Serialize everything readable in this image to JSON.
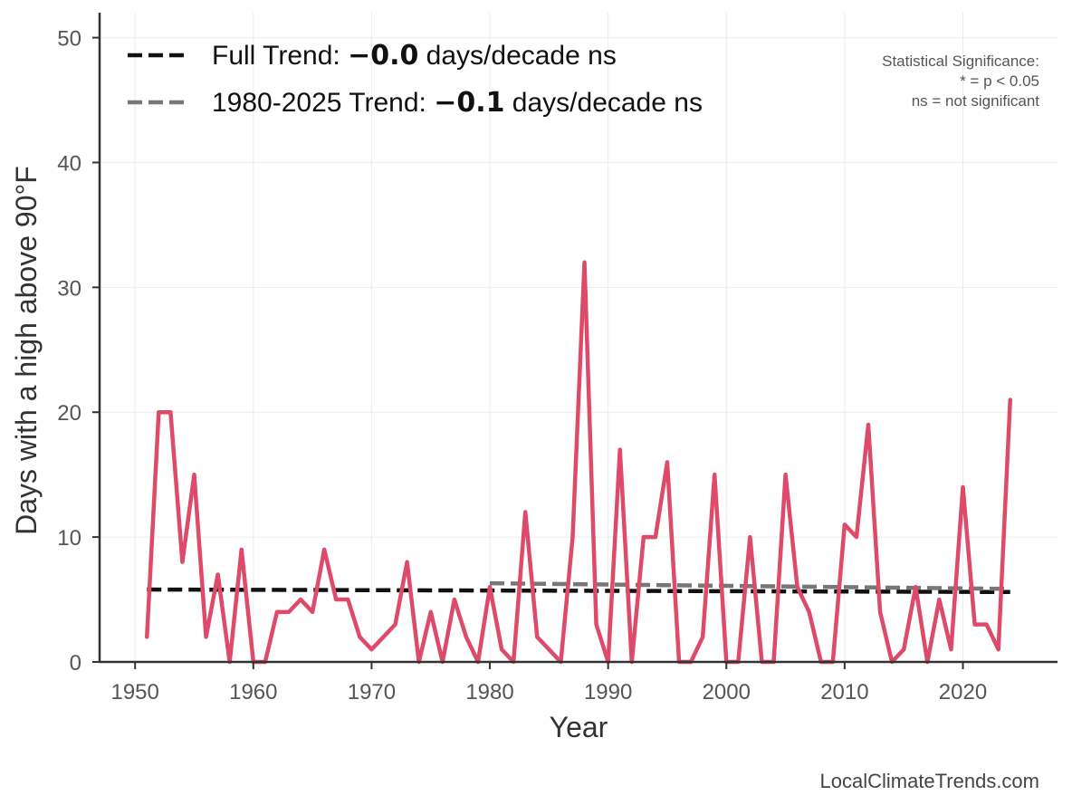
{
  "chart_data": {
    "type": "line",
    "title": "",
    "xlabel": "Year",
    "ylabel": "Days with a high above 90°F",
    "xlim": [
      1947,
      2028
    ],
    "ylim": [
      0,
      52
    ],
    "x_ticks": [
      1950,
      1960,
      1970,
      1980,
      1990,
      2000,
      2010,
      2020
    ],
    "y_ticks": [
      0,
      10,
      20,
      30,
      40,
      50
    ],
    "grid": true,
    "series": [
      {
        "color": "#dd4a6a",
        "x": [
          1951,
          1952,
          1953,
          1954,
          1955,
          1956,
          1957,
          1958,
          1959,
          1960,
          1961,
          1962,
          1963,
          1964,
          1965,
          1966,
          1967,
          1968,
          1969,
          1970,
          1971,
          1972,
          1973,
          1974,
          1975,
          1976,
          1977,
          1978,
          1979,
          1980,
          1981,
          1982,
          1983,
          1984,
          1985,
          1986,
          1987,
          1988,
          1989,
          1990,
          1991,
          1992,
          1993,
          1994,
          1995,
          1996,
          1997,
          1998,
          1999,
          2000,
          2001,
          2002,
          2003,
          2004,
          2005,
          2006,
          2007,
          2008,
          2009,
          2010,
          2011,
          2012,
          2013,
          2014,
          2015,
          2016,
          2017,
          2018,
          2019,
          2020,
          2021,
          2022,
          2023,
          2024
        ],
        "values": [
          2,
          20,
          20,
          8,
          15,
          2,
          7,
          0,
          9,
          0,
          0,
          4,
          4,
          5,
          4,
          9,
          5,
          5,
          2,
          1,
          2,
          3,
          8,
          0,
          4,
          0,
          5,
          2,
          0,
          6,
          1,
          0,
          12,
          2,
          1,
          0,
          10,
          32,
          3,
          0,
          17,
          0,
          10,
          10,
          16,
          0,
          0,
          2,
          15,
          0,
          0,
          10,
          0,
          0,
          15,
          6,
          4,
          0,
          0,
          11,
          10,
          19,
          4,
          0,
          1,
          6,
          0,
          5,
          1,
          14,
          3,
          3,
          1,
          21
        ]
      }
    ],
    "trend_lines": [
      {
        "name": "Full Trend",
        "color": "#111111",
        "style": "dashed",
        "x": [
          1951,
          2024
        ],
        "y": [
          5.8,
          5.6
        ]
      },
      {
        "name": "1980-2025 Trend",
        "color": "#777777",
        "style": "dashed",
        "x": [
          1980,
          2024
        ],
        "y": [
          6.3,
          5.85
        ]
      }
    ],
    "legend": {
      "placement": "top-left",
      "items": [
        {
          "prefix": "Full Trend: ",
          "value": "−0.0",
          "suffix": " days/decade ns",
          "color": "#111111"
        },
        {
          "prefix": "1980-2025 Trend: ",
          "value": "−0.1",
          "suffix": " days/decade ns",
          "color": "#777777"
        }
      ]
    },
    "annotation": {
      "placement": "top-right",
      "lines": [
        "Statistical Significance:",
        "* = p < 0.05",
        "ns = not significant"
      ]
    },
    "credit": "LocalClimateTrends.com"
  }
}
